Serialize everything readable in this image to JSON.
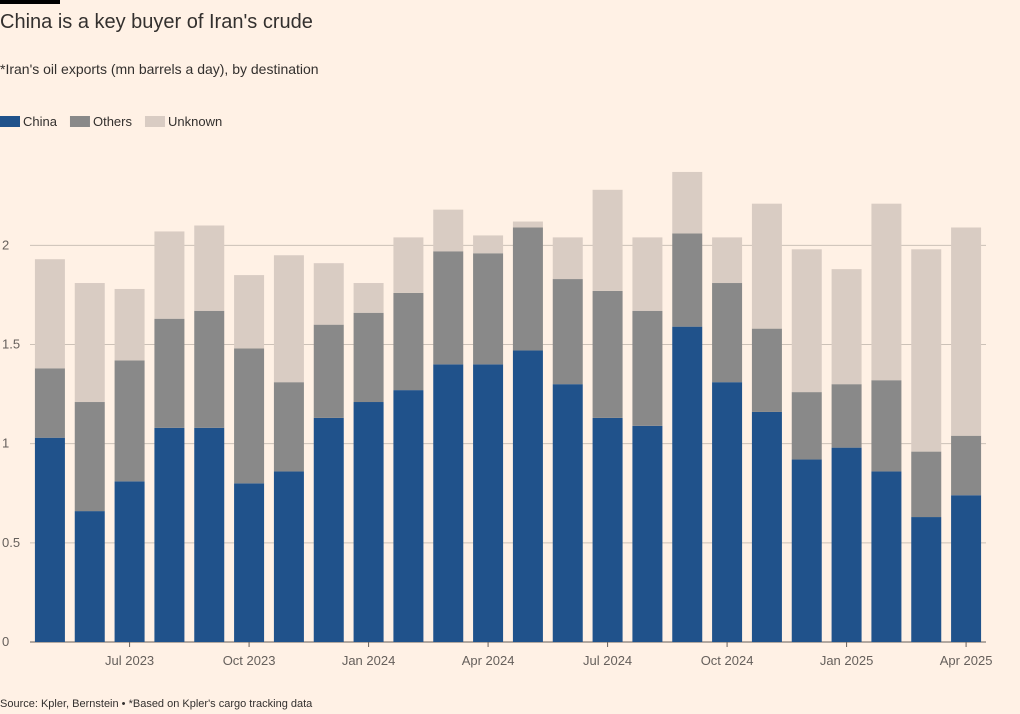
{
  "chart_data": {
    "type": "stacked-bar",
    "title": "China is a key buyer of Iran's crude",
    "subtitle": "*Iran's oil exports (mn barrels a day), by destination",
    "source": "Source: Kpler, Bernstein • *Based on Kpler's cargo tracking data",
    "categories": [
      null,
      null,
      "Jul 2023",
      null,
      null,
      "Oct 2023",
      null,
      null,
      "Jan 2024",
      null,
      null,
      "Apr 2024",
      null,
      null,
      "Jul 2024",
      null,
      null,
      "Oct 2024",
      null,
      null,
      "Jan 2025",
      null,
      null,
      "Apr 2025"
    ],
    "series": [
      {
        "name": "China",
        "color": "#20528b",
        "values": [
          1.03,
          0.66,
          0.81,
          1.08,
          1.08,
          0.8,
          0.86,
          1.13,
          1.21,
          1.27,
          1.4,
          1.4,
          1.47,
          1.3,
          1.13,
          1.09,
          1.59,
          1.31,
          1.16,
          0.92,
          0.98,
          0.86,
          0.63,
          0.74
        ]
      },
      {
        "name": "Others",
        "color": "#898989",
        "values": [
          0.35,
          0.55,
          0.61,
          0.55,
          0.59,
          0.68,
          0.45,
          0.47,
          0.45,
          0.49,
          0.57,
          0.56,
          0.62,
          0.53,
          0.64,
          0.58,
          0.47,
          0.5,
          0.42,
          0.34,
          0.32,
          0.46,
          0.33,
          0.3
        ]
      },
      {
        "name": "Unknown",
        "color": "#d9ccc3",
        "values": [
          0.55,
          0.6,
          0.36,
          0.44,
          0.43,
          0.37,
          0.64,
          0.31,
          0.15,
          0.28,
          0.21,
          0.09,
          0.03,
          0.21,
          0.51,
          0.37,
          0.31,
          0.23,
          0.63,
          0.72,
          0.58,
          0.89,
          1.02,
          1.05
        ]
      }
    ],
    "ylim": [
      0,
      2.4
    ],
    "yticks": [
      0,
      0.5,
      1,
      1.5,
      2
    ],
    "grid": true,
    "legend": "top-left"
  }
}
